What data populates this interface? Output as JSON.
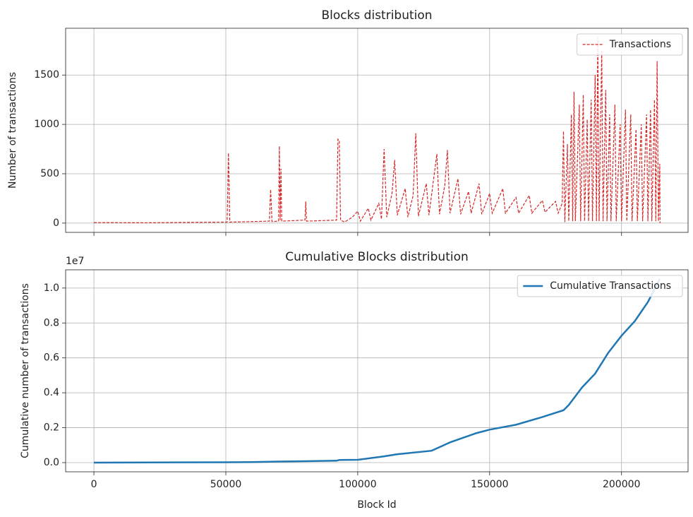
{
  "chart_data": [
    {
      "type": "line",
      "title": "Blocks distribution",
      "ylabel": "Number of transactions",
      "grid": true,
      "legend": "upper right",
      "x": [
        0,
        20000,
        40000,
        50500,
        51000,
        51500,
        60000,
        66500,
        67000,
        67500,
        70000,
        70300,
        70600,
        70900,
        71200,
        80000,
        80300,
        80600,
        92000,
        92500,
        93000,
        93500,
        95000,
        98000,
        100000,
        101000,
        104000,
        105000,
        108000,
        109000,
        110000,
        111000,
        113000,
        114000,
        115000,
        118000,
        119000,
        121000,
        122000,
        123000,
        126000,
        127000,
        130000,
        131000,
        133000,
        134000,
        135000,
        138000,
        139000,
        142000,
        143000,
        146000,
        147000,
        150000,
        151000,
        155000,
        156000,
        160000,
        161000,
        165000,
        166000,
        170000,
        171000,
        175000,
        176000,
        177500,
        178000,
        178500,
        179500,
        180000,
        181000,
        181500,
        182000,
        182500,
        184000,
        184500,
        185500,
        186000,
        187000,
        187500,
        188500,
        189000,
        190000,
        190500,
        191000,
        191500,
        192500,
        193000,
        194000,
        194500,
        195500,
        196000,
        197500,
        198000,
        199500,
        200000,
        201500,
        202000,
        203500,
        204000,
        205500,
        206000,
        207500,
        208000,
        209500,
        210000,
        211000,
        211500,
        212500,
        213000,
        213500,
        214000,
        214500,
        214600
      ],
      "series": [
        {
          "name": "Transactions",
          "color": "#d62728",
          "dashed": true,
          "values": [
            5,
            3,
            8,
            10,
            710,
            10,
            15,
            20,
            340,
            15,
            20,
            780,
            30,
            550,
            20,
            30,
            220,
            20,
            30,
            850,
            840,
            30,
            10,
            60,
            120,
            20,
            150,
            30,
            200,
            40,
            750,
            60,
            300,
            640,
            80,
            350,
            60,
            280,
            910,
            70,
            400,
            80,
            700,
            90,
            380,
            740,
            100,
            450,
            90,
            320,
            100,
            400,
            90,
            300,
            100,
            350,
            100,
            260,
            100,
            280,
            100,
            230,
            110,
            220,
            100,
            200,
            930,
            10,
            800,
            20,
            1100,
            20,
            1330,
            20,
            1200,
            20,
            1300,
            20,
            1050,
            20,
            1250,
            20,
            1500,
            20,
            1880,
            20,
            1750,
            20,
            1350,
            20,
            1100,
            20,
            1200,
            20,
            1000,
            20,
            1150,
            20,
            1100,
            20,
            950,
            20,
            1000,
            20,
            1100,
            20,
            1150,
            20,
            1250,
            20,
            1640,
            20,
            600,
            0
          ]
        }
      ],
      "xlim": [
        -10725,
        225225
      ],
      "xticks": [
        0,
        50000,
        100000,
        150000,
        200000
      ],
      "ylim": [
        -94,
        1974
      ],
      "yticks": [
        0,
        500,
        1000,
        1500
      ]
    },
    {
      "type": "line",
      "title": "Cumulative Blocks distribution",
      "xlabel": "Block Id",
      "ylabel": "Cumulative number of transactions",
      "y_offset_label": "1e7",
      "grid": true,
      "legend": "upper right",
      "x": [
        0,
        50000,
        60000,
        70000,
        80000,
        92000,
        93000,
        100000,
        110000,
        115000,
        128000,
        135000,
        145000,
        150000,
        160000,
        170000,
        178000,
        180000,
        183000,
        185000,
        190000,
        195000,
        200000,
        205000,
        210000,
        214500
      ],
      "series": [
        {
          "name": "Cumulative Transactions",
          "color": "#1f77b4",
          "dashed": false,
          "values": [
            0,
            20000,
            30000,
            60000,
            80000,
            110000,
            150000,
            160000,
            360000,
            480000,
            680000,
            1160000,
            1690000,
            1890000,
            2170000,
            2610000,
            3000000,
            3300000,
            3900000,
            4300000,
            5100000,
            6300000,
            7270000,
            8100000,
            9200000,
            10520000
          ]
        }
      ],
      "xlim": [
        -10725,
        225225
      ],
      "xticks": [
        0,
        50000,
        100000,
        150000,
        200000
      ],
      "ylim": [
        -526000,
        11046000
      ],
      "yticks": [
        {
          "value": 0,
          "label": "0.0"
        },
        {
          "value": 2000000,
          "label": "0.2"
        },
        {
          "value": 4000000,
          "label": "0.4"
        },
        {
          "value": 6000000,
          "label": "0.6"
        },
        {
          "value": 8000000,
          "label": "0.8"
        },
        {
          "value": 10000000,
          "label": "1.0"
        }
      ]
    }
  ]
}
